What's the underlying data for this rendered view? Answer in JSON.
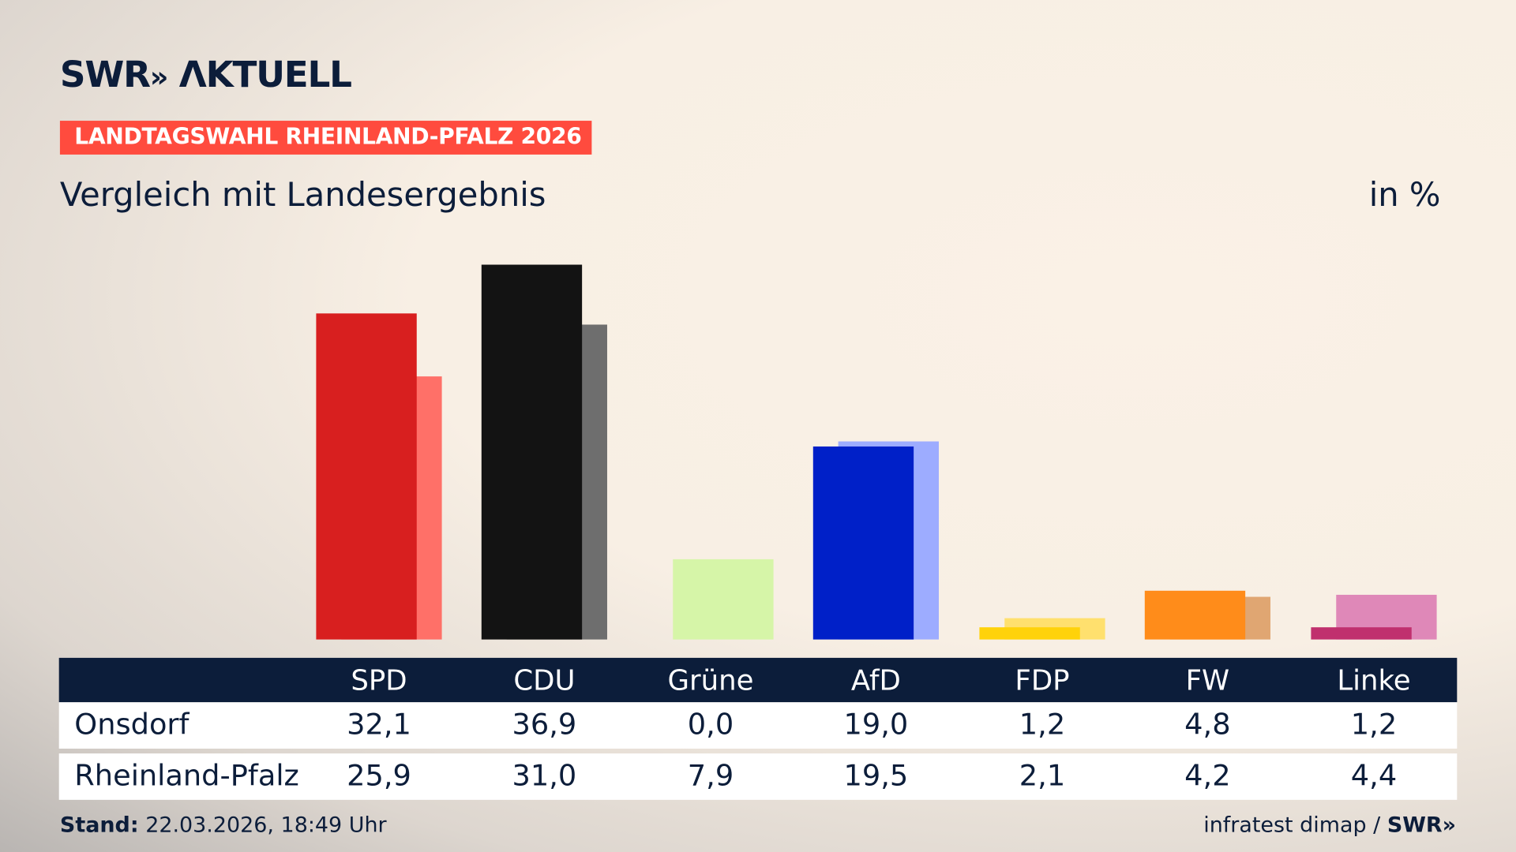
{
  "header": {
    "logo": "SWR» AKTUELL",
    "badge": "LANDTAGSWAHL RHEINLAND-PFALZ 2026",
    "subtitle": "Vergleich mit Landesergebnis",
    "unit": "in %"
  },
  "footer": {
    "stand_label": "Stand:",
    "stand_value": "22.03.2026, 18:49 Uhr",
    "source": "infratest dimap /",
    "source_logo": "SWR»"
  },
  "chart_data": {
    "type": "bar",
    "categories": [
      "SPD",
      "CDU",
      "Grüne",
      "AfD",
      "FDP",
      "FW",
      "Linke"
    ],
    "series": [
      {
        "name": "Onsdorf",
        "values": [
          32.1,
          36.9,
          0.0,
          19.0,
          1.2,
          4.8,
          1.2
        ],
        "labels": [
          "32,1",
          "36,9",
          "0,0",
          "19,0",
          "1,2",
          "4,8",
          "1,2"
        ],
        "colors": [
          "#d81f1f",
          "#131313",
          "#8fd14f",
          "#0020c8",
          "#ffd20a",
          "#ff8c1a",
          "#c0306e"
        ]
      },
      {
        "name": "Rheinland-Pfalz",
        "values": [
          25.9,
          31.0,
          7.9,
          19.5,
          2.1,
          4.2,
          4.4
        ],
        "labels": [
          "25,9",
          "31,0",
          "7,9",
          "19,5",
          "2,1",
          "4,2",
          "4,4"
        ],
        "colors": [
          "#ff7068",
          "#6e6e6e",
          "#d6f5a8",
          "#9dacff",
          "#ffe06e",
          "#e0a672",
          "#df88b8"
        ]
      }
    ],
    "ylim": [
      0,
      40
    ]
  }
}
